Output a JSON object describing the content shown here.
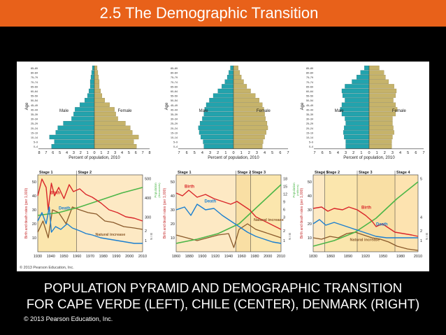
{
  "slide": {
    "title": "2.5 The Demographic Transition",
    "caption_line1": "POPULATION PYRAMID AND DEMOGRAPHIC TRANSITION",
    "caption_line2": "FOR CAPE VERDE (LEFT), CHILE (CENTER), DENMARK (RIGHT)",
    "copyright": "© 2013 Pearson Education, Inc."
  },
  "figure": {
    "inner_copyright": "© 2013 Pearson Education, Inc.",
    "colors": {
      "male": "#22a3ad",
      "female": "#c6b36a",
      "birth": "#d9262a",
      "death": "#1b7fd0",
      "natural": "#8a5a2b",
      "population": "#4cb648",
      "panel_bg": "#fde9c4"
    },
    "age_groups": [
      "85–89",
      "80–84",
      "75–79",
      "70–74",
      "65–69",
      "60–64",
      "55–59",
      "50–54",
      "45–49",
      "40–44",
      "35–39",
      "30–34",
      "25–29",
      "20–24",
      "15–19",
      "10–14",
      "5–9",
      "0–4"
    ],
    "pyramid_labels": {
      "age": "Age",
      "male": "Male",
      "female": "Female",
      "xlabel": "Percent of population, 2010"
    },
    "pyramid_ticks": [
      [
        "8",
        "7",
        "6",
        "5",
        "4",
        "3",
        "2",
        "1",
        "0",
        "1",
        "2",
        "3",
        "4",
        "5",
        "6",
        "7",
        "8"
      ],
      [
        "7",
        "6",
        "5",
        "4",
        "3",
        "2",
        "1",
        "0",
        "1",
        "2",
        "3",
        "4",
        "5",
        "6",
        "7"
      ],
      [
        "7",
        "6",
        "5",
        "4",
        "3",
        "2",
        "1",
        "0",
        "1",
        "2",
        "3",
        "4",
        "5",
        "6",
        "7"
      ]
    ],
    "pyramids": [
      {
        "male": [
          0.3,
          0.4,
          0.5,
          0.6,
          0.6,
          0.8,
          1.0,
          1.4,
          2.1,
          2.8,
          3.0,
          3.3,
          4.5,
          5.3,
          5.6,
          6.5,
          5.8,
          6.2
        ],
        "female": [
          0.4,
          0.5,
          0.6,
          0.7,
          0.7,
          0.9,
          1.1,
          1.5,
          2.2,
          2.9,
          3.1,
          3.4,
          4.5,
          5.2,
          5.5,
          6.4,
          5.7,
          6.1
        ]
      },
      {
        "male": [
          0.4,
          0.6,
          0.8,
          1.1,
          1.5,
          2.0,
          2.6,
          3.1,
          3.5,
          3.7,
          3.8,
          4.0,
          4.3,
          4.5,
          4.4,
          4.2,
          3.9,
          3.8
        ],
        "female": [
          0.6,
          0.8,
          1.0,
          1.3,
          1.7,
          2.2,
          2.8,
          3.3,
          3.7,
          3.9,
          4.0,
          4.1,
          4.3,
          4.4,
          4.2,
          4.0,
          3.8,
          3.7
        ]
      },
      {
        "male": [
          0.6,
          1.1,
          1.6,
          2.2,
          3.1,
          3.5,
          3.4,
          3.1,
          3.5,
          3.7,
          3.5,
          3.1,
          3.0,
          3.2,
          3.3,
          3.2,
          3.0,
          3.0
        ],
        "female": [
          1.3,
          1.9,
          2.1,
          2.5,
          3.2,
          3.5,
          3.4,
          3.1,
          3.4,
          3.6,
          3.4,
          3.0,
          3.0,
          3.1,
          3.2,
          3.0,
          2.9,
          2.9
        ]
      }
    ],
    "transition_labels": {
      "ylabel": "Birth and death rates (per 1,000)",
      "pop_label": "Population",
      "pop_unit1": "(thousands)",
      "pop_unit2": "(millions)",
      "birth": "Birth",
      "death": "Death",
      "natural": "Natural increase",
      "nib": "N I B",
      "stage1": "Stage 1",
      "stage2": "Stage 2",
      "stage3": "Stage 3",
      "stage4": "Stage 4"
    },
    "transitions": [
      {
        "x_ticks": [
          "1930",
          "1940",
          "1950",
          "1960",
          "1970",
          "1980",
          "1990",
          "2000",
          "2010"
        ],
        "y_ticks": [
          "10",
          "20",
          "30",
          "40",
          "50"
        ],
        "pop_ticks": [
          "300",
          "400",
          "500"
        ],
        "nib_ticks": [
          "1",
          "2"
        ],
        "stages": [
          "Stage 1",
          "Stage 2"
        ]
      },
      {
        "x_ticks": [
          "1860",
          "1880",
          "1900",
          "1920",
          "1940",
          "1960",
          "1980",
          "2000",
          "2010"
        ],
        "y_ticks": [
          "10",
          "20",
          "30",
          "40",
          "50"
        ],
        "pop_ticks": [
          "3",
          "6",
          "9",
          "12",
          "15",
          "18"
        ],
        "nib_ticks": [
          "1",
          "2"
        ],
        "stages": [
          "Stage 1",
          "Stage 2",
          "Stage 3"
        ]
      },
      {
        "x_ticks": [
          "1830",
          "1860",
          "1890",
          "1920",
          "1950",
          "1980",
          "2010"
        ],
        "y_ticks": [
          "10",
          "20",
          "30",
          "40",
          "50"
        ],
        "pop_ticks": [
          "4",
          "5"
        ],
        "nib_ticks": [
          "1",
          "2"
        ],
        "stages": [
          "Stage 1",
          "Stage 2",
          "Stage 3",
          "Stage 4"
        ]
      }
    ]
  }
}
